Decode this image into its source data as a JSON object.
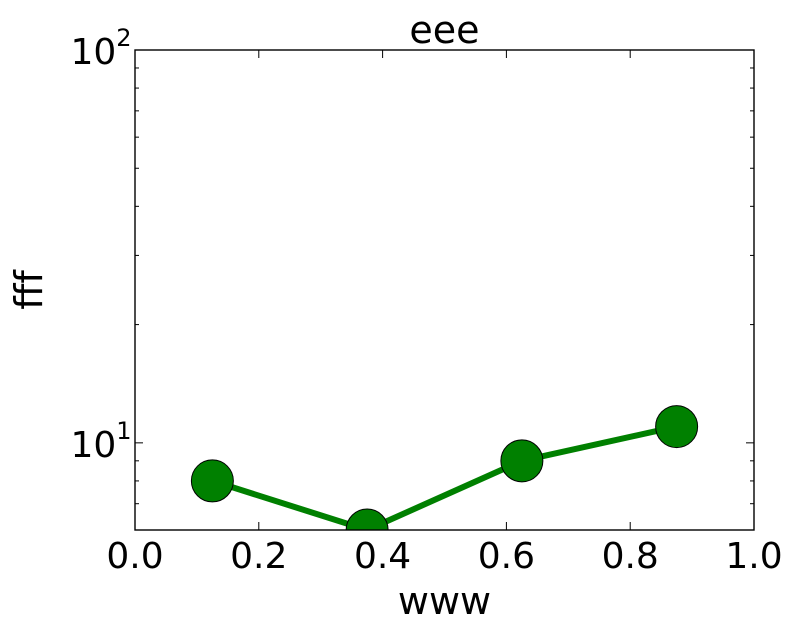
{
  "chart_data": {
    "type": "line",
    "title": "eee",
    "xlabel": "www",
    "ylabel": "fff",
    "xlim": [
      0.0,
      1.0
    ],
    "ylim": [
      6.0,
      100.0
    ],
    "yscale": "log",
    "grid": false,
    "x_ticks": [
      "0.0",
      "0.2",
      "0.4",
      "0.6",
      "0.8",
      "1.0"
    ],
    "y_ticks": [
      {
        "base": "10",
        "exp": "1",
        "value": 10
      },
      {
        "base": "10",
        "exp": "2",
        "value": 100
      }
    ],
    "series": [
      {
        "color": "#008000",
        "marker": "circle",
        "x": [
          0.125,
          0.375,
          0.625,
          0.875
        ],
        "y": [
          8.0,
          6.0,
          9.0,
          11.0
        ]
      }
    ]
  }
}
